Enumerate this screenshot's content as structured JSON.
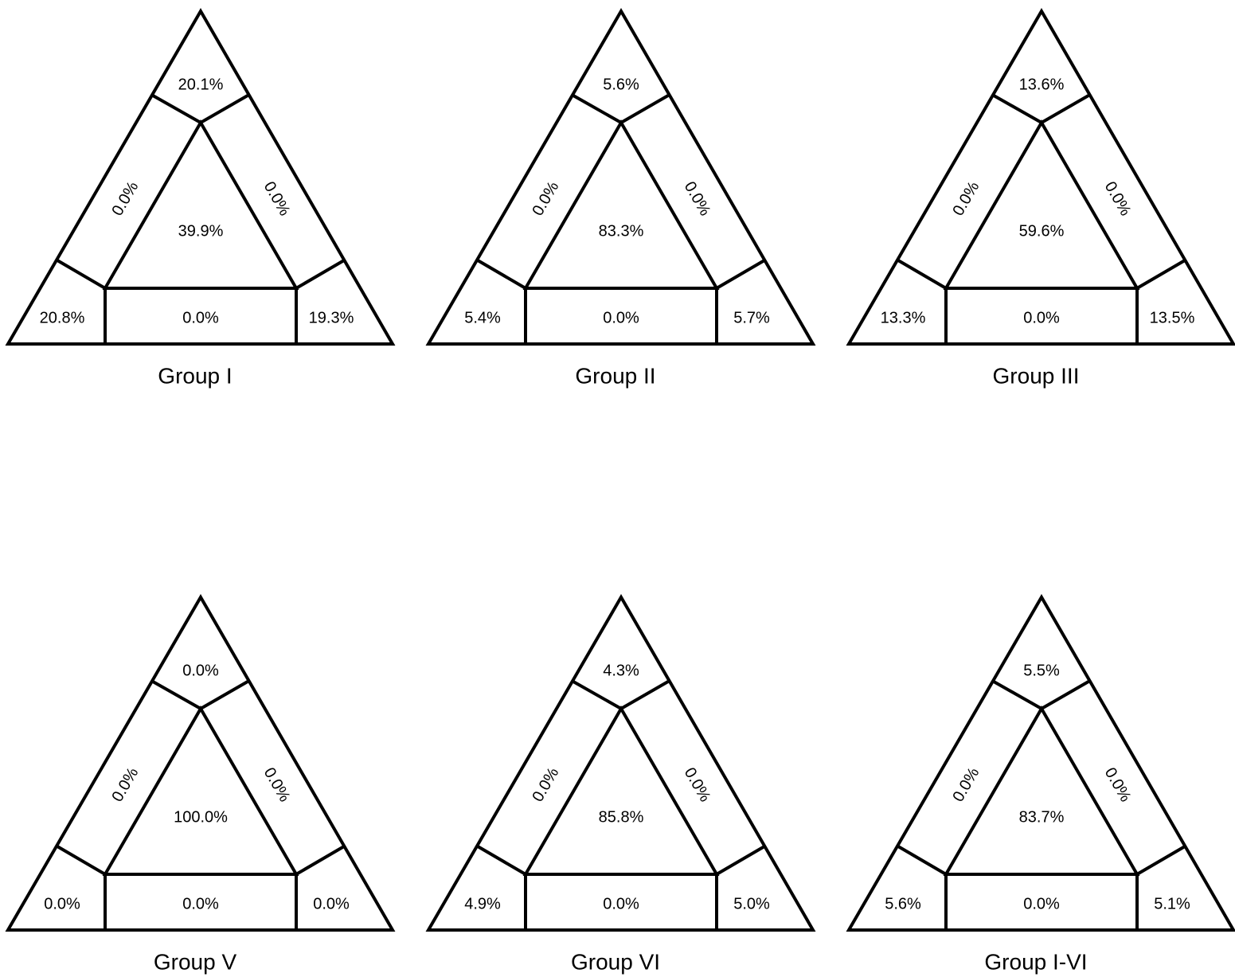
{
  "panels": [
    {
      "title": "Group I",
      "cells": {
        "top": "20.1%",
        "left_side": "0.0%",
        "right_side": "0.0%",
        "center": "39.9%",
        "bottom_left": "20.8%",
        "bottom_middle": "0.0%",
        "bottom_right": "19.3%"
      }
    },
    {
      "title": "Group II",
      "cells": {
        "top": "5.6%",
        "left_side": "0.0%",
        "right_side": "0.0%",
        "center": "83.3%",
        "bottom_left": "5.4%",
        "bottom_middle": "0.0%",
        "bottom_right": "5.7%"
      }
    },
    {
      "title": "Group III",
      "cells": {
        "top": "13.6%",
        "left_side": "0.0%",
        "right_side": "0.0%",
        "center": "59.6%",
        "bottom_left": "13.3%",
        "bottom_middle": "0.0%",
        "bottom_right": "13.5%"
      }
    },
    {
      "title": "Group V",
      "cells": {
        "top": "0.0%",
        "left_side": "0.0%",
        "right_side": "0.0%",
        "center": "100.0%",
        "bottom_left": "0.0%",
        "bottom_middle": "0.0%",
        "bottom_right": "0.0%"
      }
    },
    {
      "title": "Group VI",
      "cells": {
        "top": "4.3%",
        "left_side": "0.0%",
        "right_side": "0.0%",
        "center": "85.8%",
        "bottom_left": "4.9%",
        "bottom_middle": "0.0%",
        "bottom_right": "5.0%"
      }
    },
    {
      "title": "Group I-VI",
      "cells": {
        "top": "5.5%",
        "left_side": "0.0%",
        "right_side": "0.0%",
        "center": "83.7%",
        "bottom_left": "5.6%",
        "bottom_middle": "0.0%",
        "bottom_right": "5.1%"
      }
    }
  ]
}
